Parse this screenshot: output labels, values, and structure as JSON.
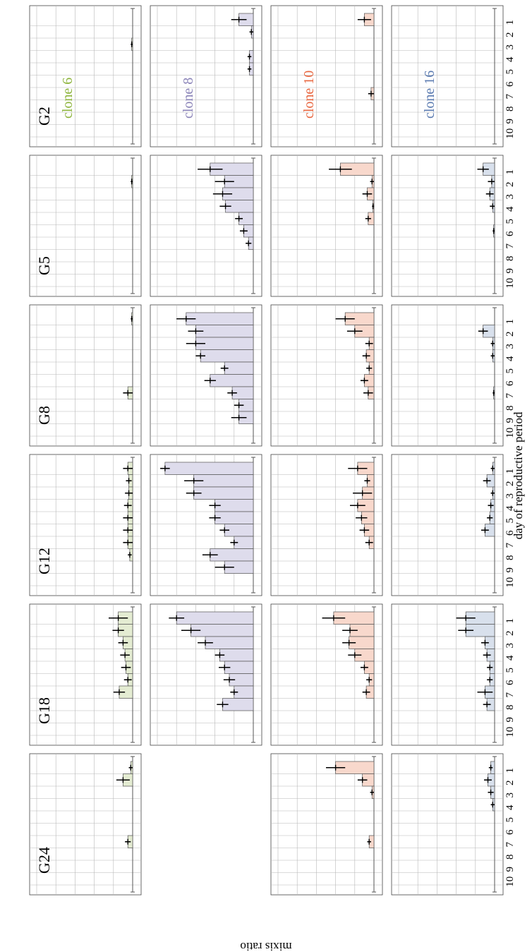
{
  "chart_data": {
    "type": "bar",
    "orientation": "rotated-90-clockwise",
    "title": "",
    "xlabel": "day of reproductive period",
    "ylabel": "mixis ratio",
    "x_ticks": [
      "1",
      "2",
      "3",
      "4",
      "5",
      "6",
      "7",
      "8",
      "9",
      "10"
    ],
    "y_ticks": [
      "0",
      "0.2",
      "0.4",
      "0.6",
      "0.8",
      "1"
    ],
    "ylim": [
      0,
      1
    ],
    "grid": true,
    "generations": [
      "G2",
      "G5",
      "G8",
      "G12",
      "G18",
      "G24"
    ],
    "clones": [
      {
        "name": "clone 6",
        "color": "#8db43c",
        "fill": "#e4ecd2"
      },
      {
        "name": "clone 8",
        "color": "#8a83b8",
        "fill": "#dedcec"
      },
      {
        "name": "clone 10",
        "color": "#e8663f",
        "fill": "#f8d8cc"
      },
      {
        "name": "clone 16",
        "color": "#5a7ab0",
        "fill": "#d8e0ec"
      }
    ],
    "panels": [
      {
        "clone": "clone 6",
        "generation": "G2",
        "values": [
          0,
          0,
          0.01,
          0,
          0,
          0,
          0,
          0,
          0,
          0
        ],
        "errors": [
          0,
          0,
          0.01,
          0,
          0,
          0,
          0,
          0,
          0,
          0
        ]
      },
      {
        "clone": "clone 6",
        "generation": "G5",
        "values": [
          0,
          0.01,
          0,
          0,
          0,
          0,
          0,
          0,
          0,
          0
        ],
        "errors": [
          0,
          0.01,
          0,
          0,
          0,
          0,
          0,
          0,
          0,
          0
        ]
      },
      {
        "clone": "clone 6",
        "generation": "G8",
        "values": [
          0.01,
          0,
          0,
          0,
          0,
          0,
          0.05,
          0,
          0,
          0
        ],
        "errors": [
          0.01,
          0,
          0,
          0,
          0,
          0,
          0.05,
          0,
          0,
          0
        ]
      },
      {
        "clone": "clone 6",
        "generation": "G12",
        "values": [
          0.05,
          0.04,
          0.04,
          0.05,
          0.05,
          0.05,
          0.05,
          0.03,
          0,
          0
        ],
        "errors": [
          0.05,
          0.03,
          0.04,
          0.04,
          0.05,
          0.05,
          0.05,
          0.02,
          0,
          0
        ]
      },
      {
        "clone": "clone 6",
        "generation": "G18",
        "values": [
          0.15,
          0.15,
          0.1,
          0.08,
          0.07,
          0.05,
          0.14,
          0,
          0,
          0
        ],
        "errors": [
          0.1,
          0.06,
          0.05,
          0.05,
          0.05,
          0.04,
          0.06,
          0,
          0,
          0
        ]
      },
      {
        "clone": "clone 6",
        "generation": "G24",
        "values": [
          0.02,
          0.1,
          0,
          0,
          0,
          0,
          0.05,
          0,
          0,
          0
        ],
        "errors": [
          0.02,
          0.07,
          0,
          0,
          0,
          0,
          0.03,
          0,
          0,
          0
        ]
      },
      {
        "clone": "clone 8",
        "generation": "G2",
        "values": [
          0.15,
          0.02,
          0,
          0.04,
          0.04,
          0,
          0,
          0,
          0,
          0
        ],
        "errors": [
          0.08,
          0.02,
          0,
          0.02,
          0.02,
          0,
          0,
          0,
          0,
          0
        ]
      },
      {
        "clone": "clone 8",
        "generation": "G5",
        "values": [
          0.45,
          0.3,
          0.32,
          0.29,
          0.15,
          0.1,
          0.05,
          0,
          0,
          0
        ],
        "errors": [
          0.13,
          0.1,
          0.1,
          0.06,
          0.04,
          0.04,
          0.03,
          0,
          0,
          0
        ]
      },
      {
        "clone": "clone 8",
        "generation": "G8",
        "values": [
          0.7,
          0.6,
          0.6,
          0.55,
          0.3,
          0.45,
          0.22,
          0.15,
          0.15,
          0
        ],
        "errors": [
          0.1,
          0.08,
          0.1,
          0.05,
          0.04,
          0.06,
          0.05,
          0.05,
          0.08,
          0
        ]
      },
      {
        "clone": "clone 8",
        "generation": "G12",
        "values": [
          0.92,
          0.62,
          0.62,
          0.4,
          0.4,
          0.3,
          0.2,
          0.45,
          0.3,
          0
        ],
        "errors": [
          0.05,
          0.1,
          0.08,
          0.06,
          0.06,
          0.05,
          0.04,
          0.08,
          0.1,
          0
        ]
      },
      {
        "clone": "clone 8",
        "generation": "G18",
        "values": [
          0.8,
          0.65,
          0.5,
          0.35,
          0.3,
          0.25,
          0.2,
          0.32,
          0,
          0
        ],
        "errors": [
          0.08,
          0.1,
          0.08,
          0.05,
          0.06,
          0.06,
          0.04,
          0.06,
          0,
          0
        ]
      },
      {
        "clone": "clone 10",
        "generation": "G2",
        "values": [
          0.1,
          0,
          0,
          0,
          0,
          0,
          0.03,
          0,
          0,
          0
        ],
        "errors": [
          0.07,
          0,
          0,
          0,
          0,
          0,
          0.03,
          0,
          0,
          0
        ]
      },
      {
        "clone": "clone 10",
        "generation": "G5",
        "values": [
          0.35,
          0.02,
          0.07,
          0.01,
          0.06,
          0,
          0,
          0,
          0,
          0
        ],
        "errors": [
          0.12,
          0.02,
          0.05,
          0.01,
          0.03,
          0,
          0,
          0,
          0,
          0
        ]
      },
      {
        "clone": "clone 10",
        "generation": "G8",
        "values": [
          0.3,
          0.2,
          0.05,
          0.08,
          0.05,
          0.1,
          0.06,
          0,
          0,
          0
        ],
        "errors": [
          0.1,
          0.08,
          0.04,
          0.04,
          0.03,
          0.04,
          0.05,
          0,
          0,
          0
        ]
      },
      {
        "clone": "clone 10",
        "generation": "G12",
        "values": [
          0.17,
          0.07,
          0.12,
          0.17,
          0.13,
          0.1,
          0.05,
          0,
          0,
          0
        ],
        "errors": [
          0.1,
          0.03,
          0.1,
          0.08,
          0.06,
          0.05,
          0.04,
          0,
          0,
          0
        ]
      },
      {
        "clone": "clone 10",
        "generation": "G18",
        "values": [
          0.42,
          0.25,
          0.26,
          0.2,
          0.1,
          0.05,
          0.08,
          0,
          0,
          0
        ],
        "errors": [
          0.12,
          0.08,
          0.07,
          0.07,
          0.04,
          0.03,
          0.04,
          0,
          0,
          0
        ]
      },
      {
        "clone": "clone 10",
        "generation": "G24",
        "values": [
          0.4,
          0.12,
          0.02,
          0,
          0,
          0,
          0.05,
          0,
          0,
          0
        ],
        "errors": [
          0.1,
          0.05,
          0.02,
          0,
          0,
          0,
          0.02,
          0,
          0,
          0
        ]
      },
      {
        "clone": "clone 16",
        "generation": "G5",
        "values": [
          0.12,
          0.03,
          0.05,
          0.02,
          0,
          0.01,
          0,
          0,
          0,
          0
        ],
        "errors": [
          0.06,
          0.04,
          0.04,
          0.03,
          0,
          0.01,
          0,
          0,
          0,
          0
        ]
      },
      {
        "clone": "clone 16",
        "generation": "G8",
        "values": [
          0,
          0.12,
          0.02,
          0.02,
          0,
          0,
          0.01,
          0,
          0,
          0
        ],
        "errors": [
          0,
          0.05,
          0.02,
          0.02,
          0,
          0,
          0.01,
          0,
          0,
          0
        ]
      },
      {
        "clone": "clone 16",
        "generation": "G12",
        "values": [
          0.02,
          0.08,
          0.02,
          0.04,
          0.05,
          0.1,
          0,
          0,
          0,
          0
        ],
        "errors": [
          0.02,
          0.04,
          0.02,
          0.03,
          0.03,
          0.04,
          0,
          0,
          0,
          0
        ]
      },
      {
        "clone": "clone 16",
        "generation": "G18",
        "values": [
          0.3,
          0.3,
          0.1,
          0.08,
          0.05,
          0.05,
          0.1,
          0.08,
          0,
          0
        ],
        "errors": [
          0.1,
          0.08,
          0.04,
          0.04,
          0.03,
          0.03,
          0.08,
          0.04,
          0,
          0
        ]
      },
      {
        "clone": "clone 16",
        "generation": "G24",
        "values": [
          0.04,
          0.07,
          0.04,
          0.02,
          0,
          0,
          0,
          0,
          0,
          0
        ],
        "errors": [
          0.02,
          0.04,
          0.03,
          0.02,
          0,
          0,
          0,
          0,
          0,
          0
        ]
      }
    ]
  }
}
